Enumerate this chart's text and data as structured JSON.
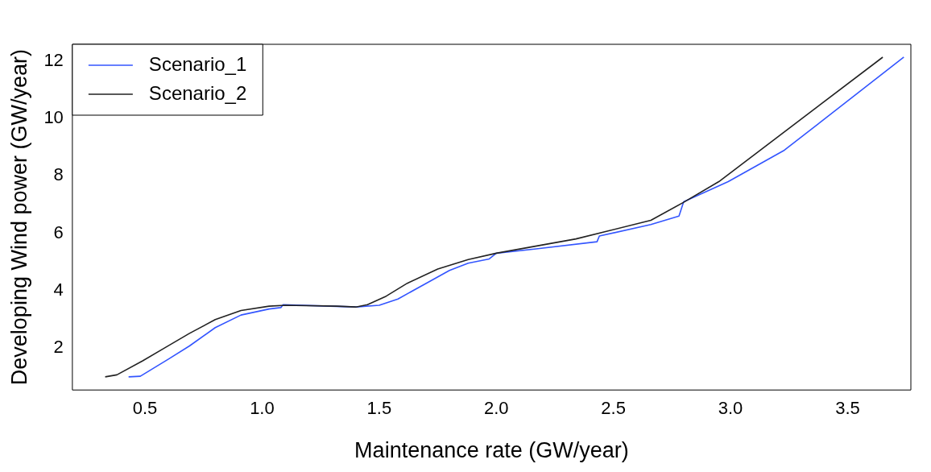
{
  "chart_data": {
    "type": "line",
    "xlabel": "Maintenance rate (GW/year)",
    "ylabel": "Developing Wind power (GW/year)",
    "xlim": [
      0.19,
      3.77
    ],
    "ylim": [
      0.52,
      12.6
    ],
    "xticks": [
      {
        "value": 0.5,
        "label": "0.5"
      },
      {
        "value": 1,
        "label": "1.0"
      },
      {
        "value": 1.5,
        "label": "1.5"
      },
      {
        "value": 2,
        "label": "2.0"
      },
      {
        "value": 2.5,
        "label": "2.5"
      },
      {
        "value": 3,
        "label": "3.0"
      },
      {
        "value": 3.5,
        "label": "3.5"
      }
    ],
    "yticks": [
      2,
      4,
      6,
      8,
      10,
      12
    ],
    "grid": false,
    "legend": "top left",
    "marker": "none",
    "line_style": "solid",
    "series": [
      {
        "name": "Scenario_1",
        "color": "#3355ff",
        "x": [
          0.43,
          0.48,
          0.6,
          0.69,
          0.8,
          0.91,
          1.03,
          1.08,
          1.09,
          1.29,
          1.4,
          1.5,
          1.58,
          1.69,
          1.8,
          1.88,
          1.97,
          2.0,
          2.17,
          2.43,
          2.44,
          2.66,
          2.78,
          2.8,
          2.99,
          3.23,
          3.74
        ],
        "values": [
          0.98,
          1.0,
          1.6,
          2.06,
          2.7,
          3.14,
          3.35,
          3.4,
          3.5,
          3.45,
          3.42,
          3.48,
          3.7,
          4.2,
          4.7,
          4.95,
          5.1,
          5.3,
          5.45,
          5.7,
          5.9,
          6.3,
          6.6,
          7.1,
          7.8,
          8.9,
          12.15
        ]
      },
      {
        "name": "Scenario_2",
        "color": "#222222",
        "x": [
          0.33,
          0.38,
          0.49,
          0.58,
          0.69,
          0.8,
          0.91,
          1.03,
          1.1,
          1.32,
          1.4,
          1.45,
          1.53,
          1.62,
          1.75,
          1.88,
          2.0,
          2.34,
          2.66,
          2.8,
          2.95,
          3.65
        ],
        "values": [
          0.98,
          1.05,
          1.54,
          1.97,
          2.5,
          2.98,
          3.3,
          3.45,
          3.48,
          3.45,
          3.42,
          3.5,
          3.8,
          4.25,
          4.75,
          5.08,
          5.3,
          5.8,
          6.45,
          7.08,
          7.8,
          12.15
        ]
      }
    ]
  }
}
